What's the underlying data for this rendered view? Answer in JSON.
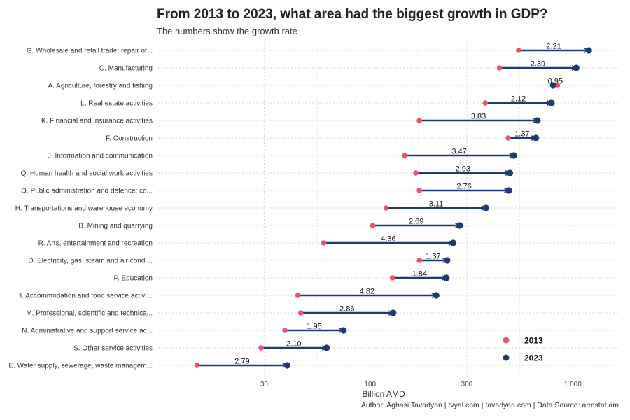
{
  "header": {
    "title": "From 2013 to 2023, what area had the biggest growth in GDP?",
    "subtitle": "The numbers show the growth rate"
  },
  "caption": "Author: Aghasi Tavadyan   |   tvyal.com   |   tavadyan.com     |    Data Source: armstat.am",
  "colors": {
    "start": "#e8546a",
    "end": "#1f3a73",
    "grid": "#d4d4d4",
    "background": "#ffffff"
  },
  "chart_data": {
    "type": "dumbbell",
    "title": "From 2013 to 2023, what area had the biggest growth in GDP?",
    "subtitle": "The numbers show the growth rate",
    "xlabel": "Billion AMD",
    "ylabel": "",
    "x_scale": "log10",
    "xlim": [
      9,
      1700
    ],
    "x_ticks": [
      30,
      100,
      300,
      1000
    ],
    "x_tick_labels": [
      "30",
      "100",
      "300",
      "1 000"
    ],
    "grid": true,
    "legend_position": "bottom-right",
    "series": [
      {
        "name": "2013"
      },
      {
        "name": "2023"
      }
    ],
    "categories": [
      "G. Wholesale and retail trade; repair of...",
      "C. Manufacturing",
      "A. Agriculture, forestry and fishing",
      "L. Real estate activities",
      "K. Financial and insurance activities",
      "F. Construction",
      "J. Information and communication",
      "Q. Human health and social work activities",
      "O. Public administration and defence; co...",
      "H. Transportations and warehouse economy",
      "B. Mining and quarrying",
      "R. Arts, entertainment and recreation",
      "D. Electricity, gas, steam and air condi...",
      "P. Education",
      "I. Accommodation and food service activi...",
      "M. Professional, scientific and technica...",
      "N. Administrative and support service ac...",
      "S. Other service activities",
      "E. Water supply, sewerage, waste managem..."
    ],
    "values_2013": [
      540,
      435,
      840,
      370,
      175,
      480,
      148,
      168,
      175,
      120,
      103,
      59,
      175,
      129,
      44,
      45.5,
      38,
      29,
      14
    ],
    "values_2023": [
      1200,
      1040,
      800,
      785,
      670,
      658,
      512,
      490,
      484,
      373,
      277,
      257,
      240,
      238,
      212,
      130,
      74,
      61,
      39
    ],
    "growth_rates": [
      "2.21",
      "2.39",
      "0.95",
      "2.12",
      "3.83",
      "1.37",
      "3.47",
      "2.93",
      "2.76",
      "3.11",
      "2.69",
      "4.36",
      "1.37",
      "1.84",
      "4.82",
      "2.86",
      "1.95",
      "2.10",
      "2.79"
    ]
  }
}
